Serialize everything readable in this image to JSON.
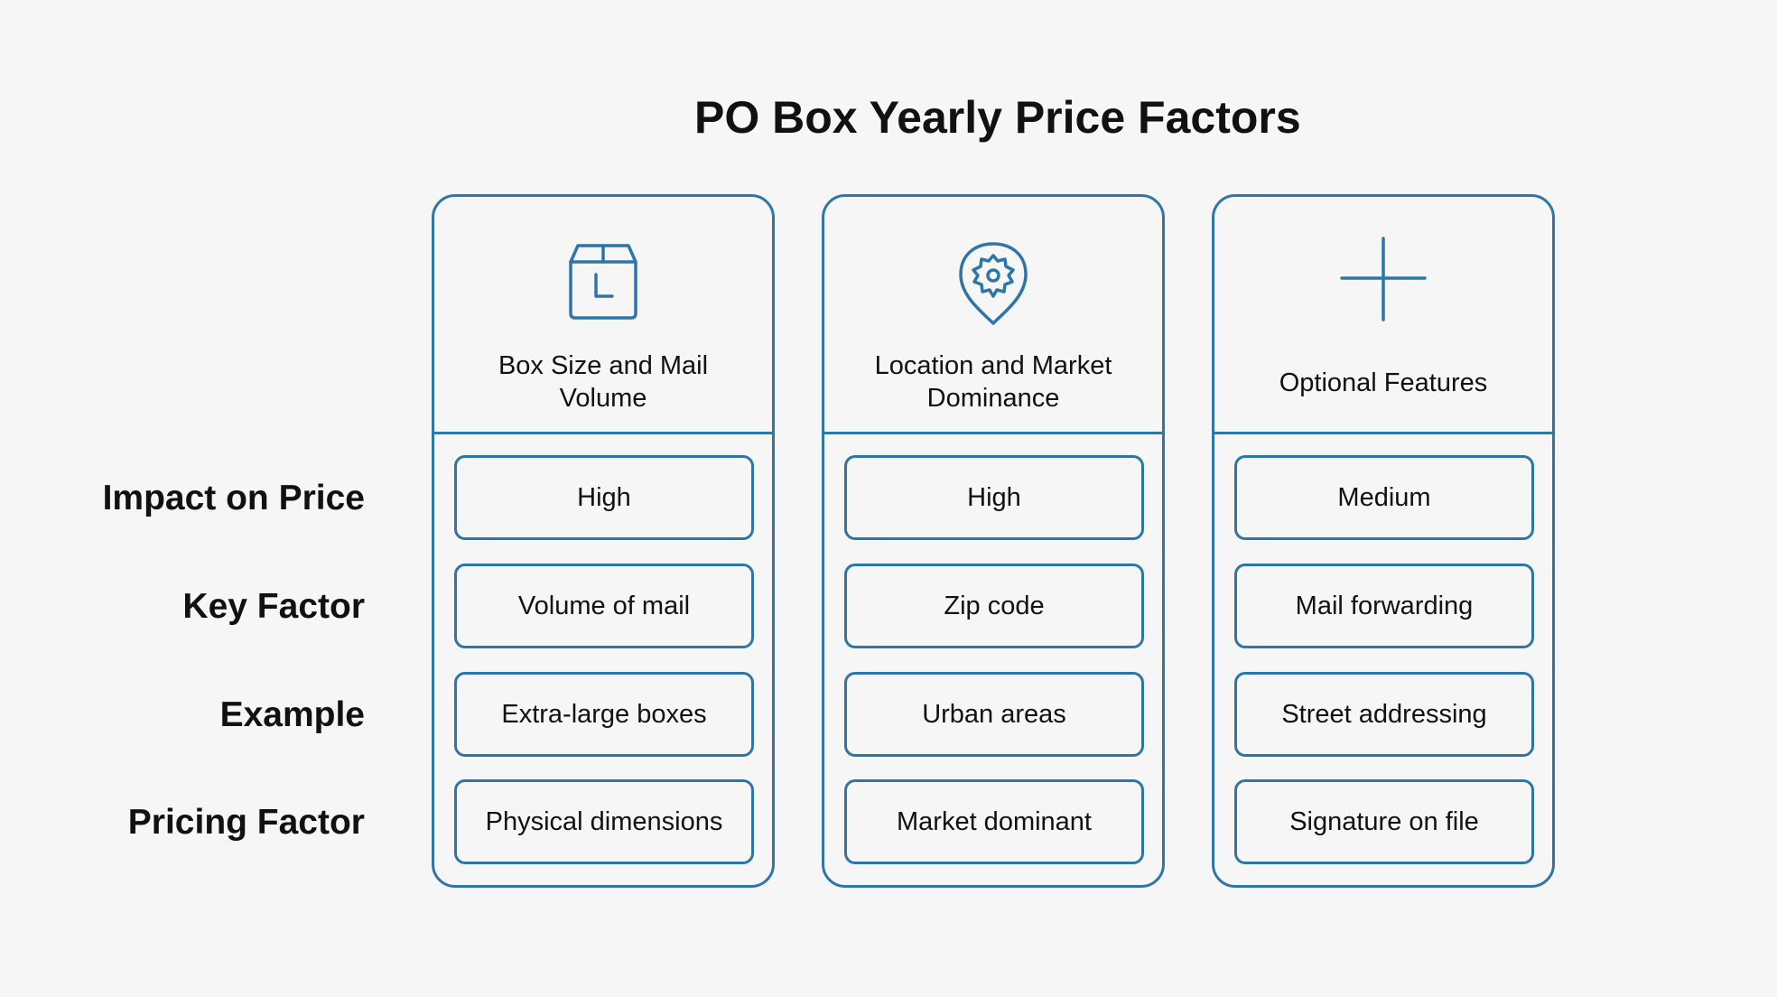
{
  "title": "PO Box Yearly Price Factors",
  "row_labels": [
    "Impact on Price",
    "Key Factor",
    "Example",
    "Pricing Factor"
  ],
  "columns": [
    {
      "title": "Box Size and Mail Volume",
      "icon": "box-icon",
      "cells": [
        "High",
        "Volume of mail",
        "Extra-large boxes",
        "Physical dimensions"
      ]
    },
    {
      "title": "Location and Market Dominance",
      "icon": "location-gear-icon",
      "cells": [
        "High",
        "Zip code",
        "Urban areas",
        "Market dominant"
      ]
    },
    {
      "title": "Optional Features",
      "icon": "plus-icon",
      "cells": [
        "Medium",
        "Mail forwarding",
        "Street addressing",
        "Signature on file"
      ]
    }
  ],
  "colors": {
    "accent": "#2e75a8",
    "background": "#f6f6f6",
    "text": "#111111"
  }
}
